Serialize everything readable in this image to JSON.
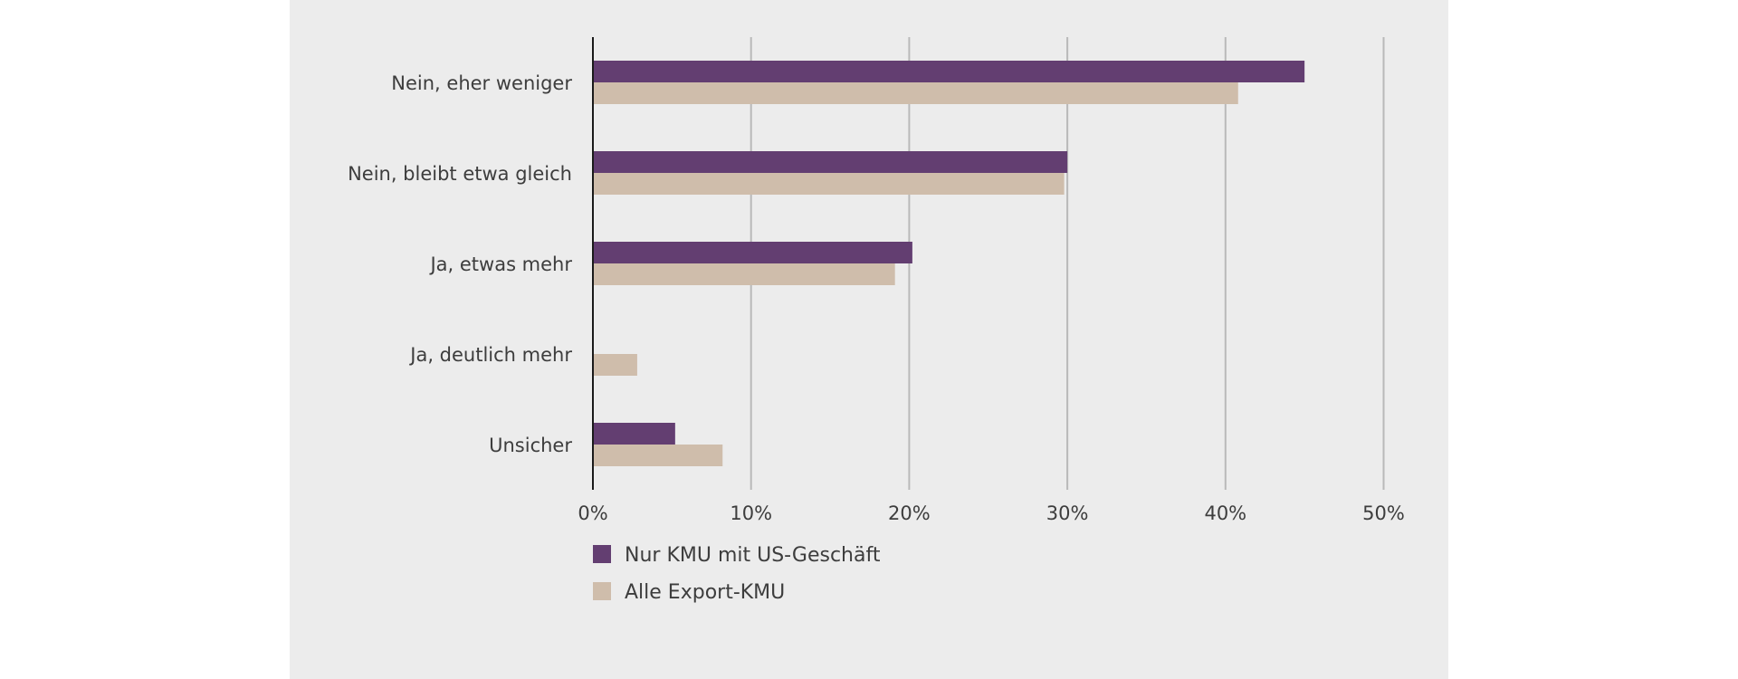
{
  "chart_data": {
    "type": "bar",
    "orientation": "horizontal",
    "categories": [
      "Nein, eher weniger",
      "Nein, bleibt etwa gleich",
      "Ja, etwas mehr",
      "Ja, deutlich mehr",
      "Unsicher"
    ],
    "series": [
      {
        "name": "Nur KMU mit US-Geschäft",
        "color": "#633e71",
        "values": [
          45,
          30,
          20.2,
          0,
          5.2
        ]
      },
      {
        "name": "Alle Export-KMU",
        "color": "#cfbdab",
        "values": [
          40.8,
          29.8,
          19.1,
          2.8,
          8.2
        ]
      }
    ],
    "xlim": [
      0,
      50
    ],
    "xticks": [
      0,
      10,
      20,
      30,
      40,
      50
    ],
    "xtick_labels": [
      "0%",
      "10%",
      "20%",
      "30%",
      "40%",
      "50%"
    ],
    "grid": "vertical",
    "legend_position": "bottom-left",
    "title": "",
    "xlabel": "",
    "ylabel": ""
  }
}
